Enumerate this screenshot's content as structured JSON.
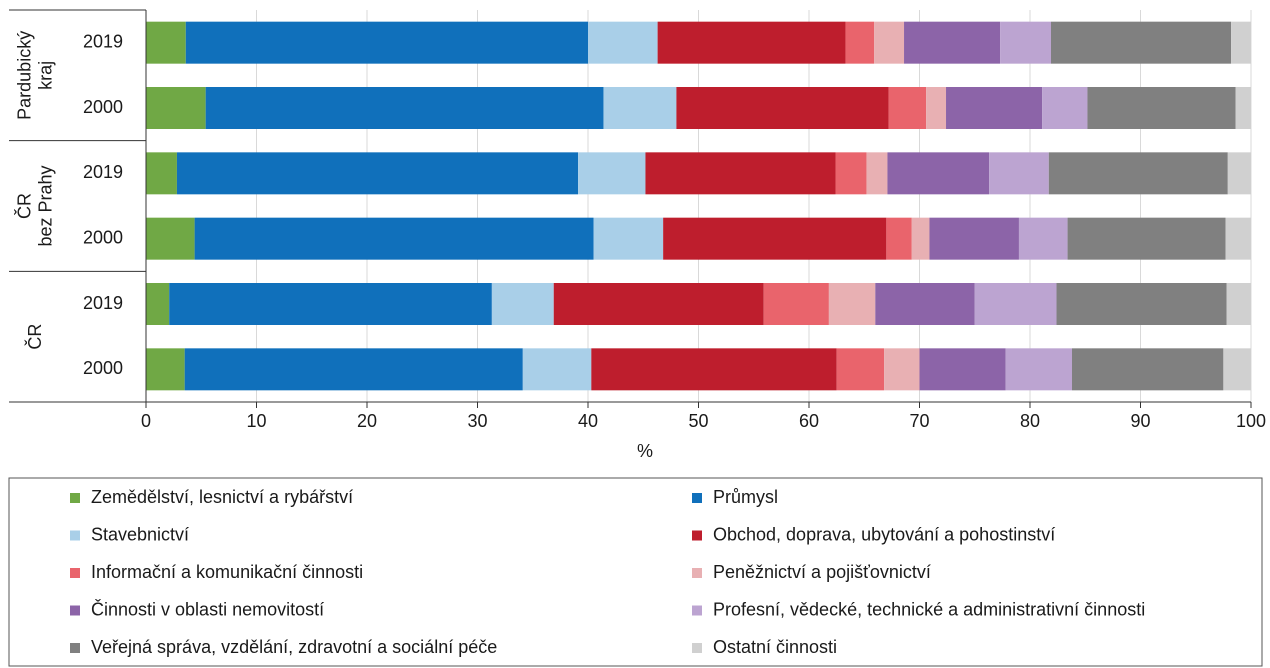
{
  "chart_data": {
    "type": "stacked-barh",
    "x_label": "%",
    "groups": [
      {
        "lines": [
          "Pardubický",
          "kraj"
        ]
      },
      {
        "lines": [
          "ČR",
          "bez Prahy"
        ]
      },
      {
        "lines": [
          "ČR"
        ]
      }
    ],
    "categories": [
      "2019",
      "2000",
      "2019",
      "2000",
      "2019",
      "2000"
    ],
    "xlim": [
      0,
      100
    ],
    "xticks": [
      0,
      10,
      20,
      30,
      40,
      50,
      60,
      70,
      80,
      90,
      100
    ],
    "grid": true,
    "series": [
      {
        "name": "Zemědělství, lesnictví a rybářství",
        "color": "#70a845",
        "values": [
          3.6,
          5.4,
          2.8,
          4.4,
          2.1,
          3.5
        ]
      },
      {
        "name": "Průmysl",
        "color": "#1070bb",
        "values": [
          36.4,
          36.0,
          36.3,
          36.1,
          29.2,
          30.6
        ]
      },
      {
        "name": "Stavebnictví",
        "color": "#a9cfe8",
        "values": [
          6.3,
          6.6,
          6.1,
          6.3,
          5.6,
          6.2
        ]
      },
      {
        "name": "Obchod, doprava, ubytování a pohostinství",
        "color": "#be1e2d",
        "values": [
          17.0,
          19.2,
          17.2,
          20.2,
          19.0,
          22.2
        ]
      },
      {
        "name": "Informační a komunikační činnosti",
        "color": "#e9646c",
        "values": [
          2.6,
          3.4,
          2.8,
          2.3,
          5.9,
          4.3
        ]
      },
      {
        "name": "Peněžnictví a pojišťovnictví",
        "color": "#e8b0b3",
        "values": [
          2.7,
          1.8,
          1.9,
          1.6,
          4.2,
          3.2
        ]
      },
      {
        "name": "Činnosti v oblasti nemovitostí",
        "color": "#8c64a8",
        "values": [
          8.7,
          8.7,
          9.2,
          8.1,
          9.0,
          7.8
        ]
      },
      {
        "name": "Profesní, vědecké, technické a administrativní činnosti",
        "color": "#bca4d1",
        "values": [
          4.6,
          4.1,
          5.4,
          4.4,
          7.4,
          6.0
        ]
      },
      {
        "name": "Veřejná správa, vzdělání, zdravotní a sociální péče",
        "color": "#808080",
        "values": [
          16.3,
          13.4,
          16.2,
          14.3,
          15.4,
          13.7
        ]
      },
      {
        "name": "Ostatní činnosti",
        "color": "#d0d0d0",
        "values": [
          1.8,
          1.4,
          2.1,
          2.3,
          2.2,
          2.5
        ]
      }
    ]
  }
}
